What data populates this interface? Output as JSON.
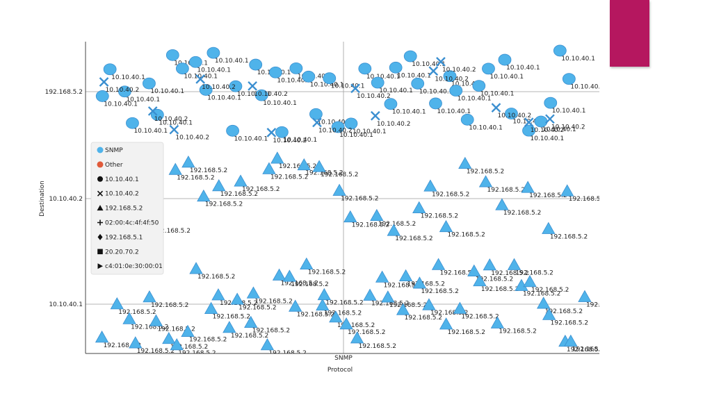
{
  "accent_color": "#b5175f",
  "chart_data": {
    "type": "scatter",
    "title": "",
    "xlabel": "Protocol",
    "ylabel": "Destination",
    "x_categories": [
      "SNMP"
    ],
    "y_categories": [
      "10.10.40.1",
      "10.10.40.2",
      "192.168.5.2"
    ],
    "grid": true,
    "legend_position": "left",
    "colors": {
      "SNMP": "#4fb3ea",
      "Other": "#e05a3a",
      "mark": "#3b8fd0",
      "grid": "#9e9e9e"
    },
    "legend": [
      {
        "label": "SNMP",
        "kind": "color",
        "icon": "circle-fill"
      },
      {
        "label": "Other",
        "kind": "color",
        "icon": "circle-fill-other"
      },
      {
        "label": "10.10.40.1",
        "kind": "shape",
        "icon": "circle"
      },
      {
        "label": "10.10.40.2",
        "kind": "shape",
        "icon": "cross"
      },
      {
        "label": "192.168.5.2",
        "kind": "shape",
        "icon": "triangle"
      },
      {
        "label": "02:00:4c:4f:4f:50",
        "kind": "shape",
        "icon": "plus"
      },
      {
        "label": "192.168.5.1",
        "kind": "shape",
        "icon": "diamond"
      },
      {
        "label": "20.20.70.2",
        "kind": "shape",
        "icon": "square"
      },
      {
        "label": "c4:01:0e:30:00:01",
        "kind": "shape",
        "icon": "play"
      }
    ],
    "point_groups": [
      {
        "category": "SNMP",
        "destination": "192.168.5.2",
        "source": "10.10.40.1",
        "shape": "circle",
        "count": 42
      },
      {
        "category": "SNMP",
        "destination": "192.168.5.2",
        "source": "10.10.40.2",
        "shape": "cross",
        "count": 14
      },
      {
        "category": "SNMP",
        "destination": "10.10.40.2",
        "source": "192.168.5.2",
        "shape": "triangle",
        "count": 25
      },
      {
        "category": "SNMP",
        "destination": "10.10.40.1",
        "source": "192.168.5.2",
        "shape": "triangle",
        "count": 48
      }
    ]
  }
}
